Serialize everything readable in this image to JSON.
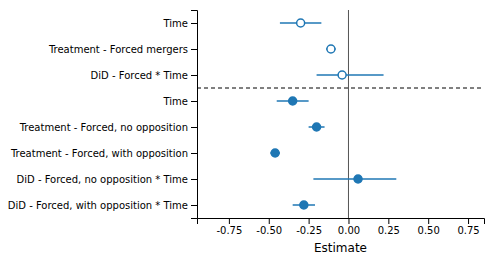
{
  "chart_data": {
    "type": "forest",
    "xlabel": "Estimate",
    "categories": [
      "Time",
      "Treatment - Forced mergers",
      "DiD - Forced * Time",
      "Time",
      "Treatment - Forced, no opposition",
      "Treatment - Forced, with opposition",
      "DiD - Forced, no opposition * Time",
      "DiD - Forced, with opposition * Time"
    ],
    "series": [
      {
        "marker": "open",
        "values": [
          -0.3,
          -0.11,
          -0.04,
          null,
          null,
          null,
          null,
          null
        ],
        "ci_low": [
          -0.43,
          -0.14,
          -0.2,
          null,
          null,
          null,
          null,
          null
        ],
        "ci_high": [
          -0.17,
          -0.08,
          0.22,
          null,
          null,
          null,
          null,
          null
        ]
      },
      {
        "marker": "filled",
        "values": [
          null,
          null,
          null,
          -0.35,
          -0.2,
          -0.46,
          0.06,
          -0.28
        ],
        "ci_low": [
          null,
          null,
          null,
          -0.45,
          -0.25,
          -0.49,
          -0.22,
          -0.35
        ],
        "ci_high": [
          null,
          null,
          null,
          -0.25,
          -0.15,
          -0.43,
          0.3,
          -0.21
        ]
      }
    ],
    "xlim": [
      -0.95,
      0.85
    ],
    "xticks": [
      -0.75,
      {
        "value": -0.5,
        "label": "-0.50"
      },
      -0.25,
      {
        "value": 0,
        "label": "0.00"
      },
      0.25,
      {
        "value": 0.5,
        "label": "0.50"
      },
      0.75
    ],
    "reference_line": 0
  }
}
